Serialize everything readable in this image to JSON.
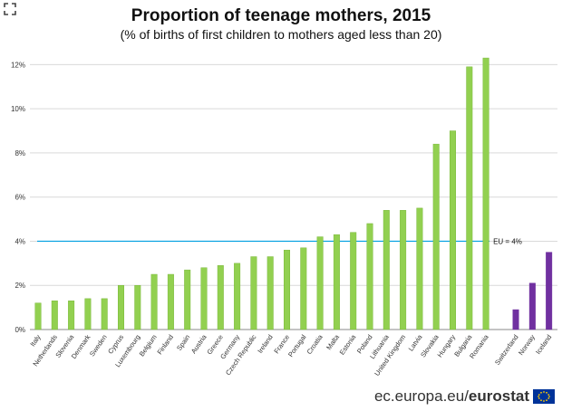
{
  "header": {
    "title": "Proportion of teenage mothers, 2015",
    "subtitle": "(% of births of first children to mothers aged less than 20)"
  },
  "footer": {
    "site": "ec.europa.eu/",
    "brand": "eurostat"
  },
  "colors": {
    "eu_bar": "#92d050",
    "eu_bar_edge": "#7ab83a",
    "efta_bar": "#7030a0",
    "eu_line": "#00a0e0",
    "grid": "#d9d9d9",
    "axis_text": "#333333"
  },
  "chart_data": {
    "type": "bar",
    "title": "Proportion of teenage mothers, 2015",
    "subtitle": "(% of births of first children to mothers aged less than 20)",
    "ylim": [
      0,
      13
    ],
    "yticks": [
      0,
      2,
      4,
      6,
      8,
      10,
      12
    ],
    "ytick_labels": [
      "0%",
      "2%",
      "4%",
      "6%",
      "8%",
      "10%",
      "12%"
    ],
    "grid": "horizontal",
    "reference_line": {
      "value": 4,
      "label": "EU = 4%"
    },
    "series": [
      {
        "group": "eu",
        "categories": [
          "Italy",
          "Netherlands",
          "Slovenia",
          "Denmark",
          "Sweden",
          "Cyprus",
          "Luxembourg",
          "Belgium",
          "Finland",
          "Spain",
          "Austria",
          "Greece",
          "Germany",
          "Czech Republic",
          "Ireland",
          "France",
          "Portugal",
          "Croatia",
          "Malta",
          "Estonia",
          "Poland",
          "Lithuania",
          "United Kingdom",
          "Latvia",
          "Slovakia",
          "Hungary",
          "Bulgaria",
          "Romania"
        ],
        "values": [
          1.2,
          1.3,
          1.3,
          1.4,
          1.4,
          2.0,
          2.0,
          2.5,
          2.5,
          2.7,
          2.8,
          2.9,
          3.0,
          3.3,
          3.3,
          3.6,
          3.7,
          4.2,
          4.3,
          4.4,
          4.8,
          5.4,
          5.4,
          5.5,
          8.4,
          9.0,
          11.9,
          12.3
        ]
      },
      {
        "group": "efta",
        "categories": [
          "Switzerland",
          "Norway",
          "Iceland"
        ],
        "values": [
          0.9,
          2.1,
          3.5
        ]
      }
    ]
  }
}
